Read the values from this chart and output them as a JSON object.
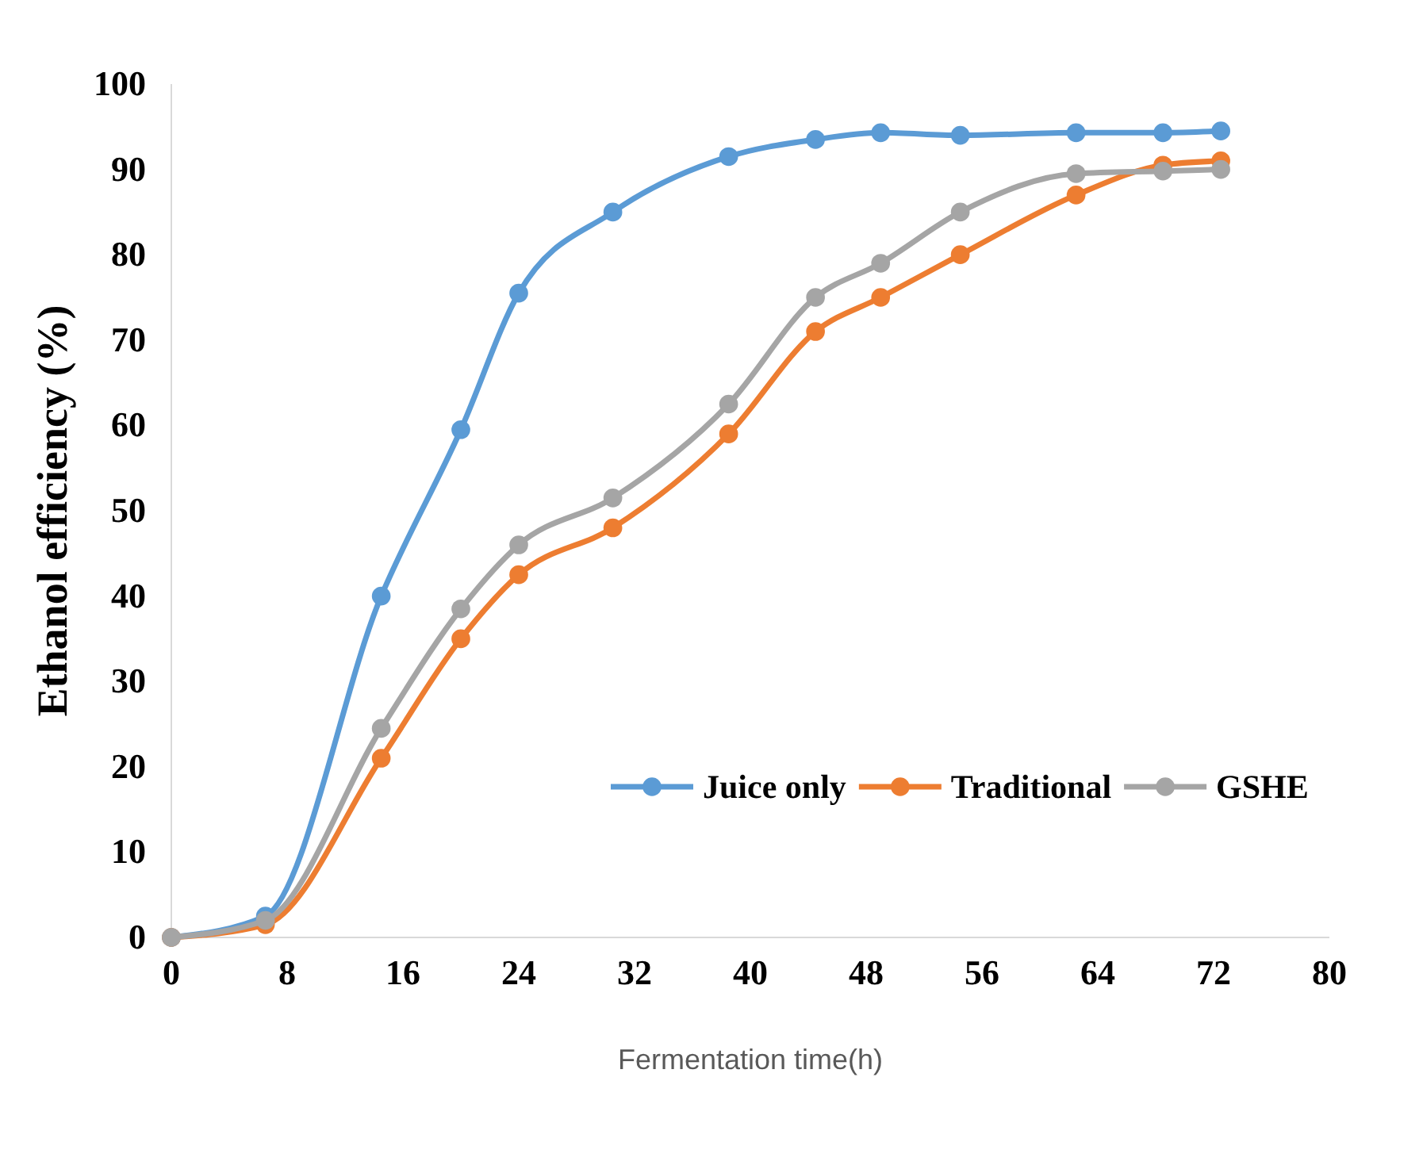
{
  "chart_data": {
    "type": "line",
    "xlabel": "Fermentation time(h)",
    "ylabel": "Ethanol efficiency (%)",
    "x": [
      0,
      6.5,
      14.5,
      20,
      24,
      30.5,
      38.5,
      44.5,
      49,
      54.5,
      62.5,
      68.5,
      72.5
    ],
    "series": [
      {
        "name": "Juice only",
        "color": "#5b9bd5",
        "values": [
          0,
          2.5,
          40,
          59.5,
          75.5,
          85,
          91.5,
          93.5,
          94.3,
          94,
          94.3,
          94.3,
          94.5
        ]
      },
      {
        "name": "Traditional",
        "color": "#ed7d31",
        "values": [
          0,
          1.5,
          21,
          35,
          42.5,
          48,
          59,
          71,
          75,
          80,
          87,
          90.5,
          91
        ]
      },
      {
        "name": "GSHE",
        "color": "#a5a5a5",
        "values": [
          0,
          2,
          24.5,
          38.5,
          46,
          51.5,
          62.5,
          75,
          79,
          85,
          89.5,
          89.8,
          90
        ]
      }
    ],
    "xlim": [
      0,
      80
    ],
    "xticks": [
      0,
      8,
      16,
      24,
      32,
      40,
      48,
      56,
      64,
      72,
      80
    ],
    "ylim": [
      0,
      100
    ],
    "yticks": [
      0,
      10,
      20,
      30,
      40,
      50,
      60,
      70,
      80,
      90,
      100
    ],
    "grid": false,
    "legend": "bottom right",
    "marker": "circle",
    "line_style": "solid"
  }
}
